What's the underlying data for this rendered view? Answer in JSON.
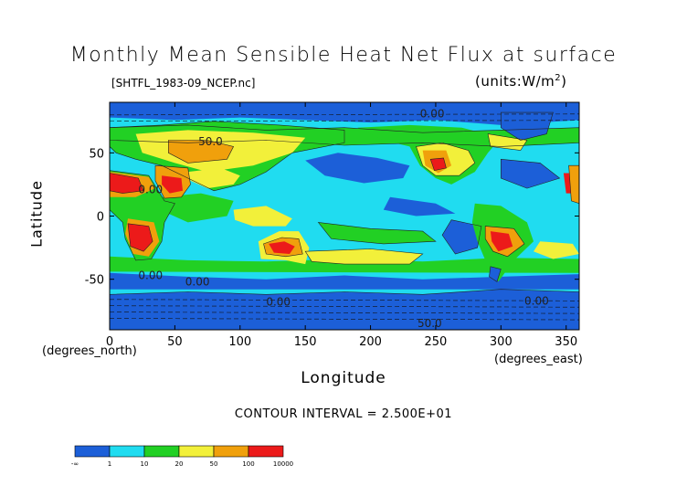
{
  "chart_data": {
    "type": "heatmap",
    "title": "Monthly Mean Sensible Heat Net Flux at surface",
    "dataset": "[SHTFL_1983-09_NCEP.nc]",
    "units": "(units:W/m^2)",
    "xlabel": "Longitude",
    "ylabel": "Latitude",
    "x_unit": "(degrees_east)",
    "y_unit": "(degrees_north)",
    "xlim": [
      0,
      360
    ],
    "ylim": [
      -90,
      90
    ],
    "x_ticks": [
      0,
      50,
      100,
      150,
      200,
      250,
      300,
      350
    ],
    "y_ticks": [
      50,
      0,
      -50
    ],
    "contour_interval": "CONTOUR INTERVAL = 2.500E+01",
    "contour_labels": [
      {
        "text": "0.00",
        "lon": 238,
        "lat": 78
      },
      {
        "text": "50.0",
        "lon": 68,
        "lat": 56
      },
      {
        "text": "0.00",
        "lon": 22,
        "lat": 18
      },
      {
        "text": "0.00",
        "lon": 22,
        "lat": -50
      },
      {
        "text": "0.00",
        "lon": 58,
        "lat": -55
      },
      {
        "text": "0.00",
        "lon": 120,
        "lat": -71
      },
      {
        "text": "0.00",
        "lon": 318,
        "lat": -70
      },
      {
        "text": "50.0",
        "lon": 236,
        "lat": -88
      }
    ],
    "colorbar": {
      "colors": [
        "#1c5fd8",
        "#20dcf0",
        "#22d024",
        "#f2f03a",
        "#f0a00c",
        "#ec1a1a"
      ],
      "tick_labels": [
        "-∞",
        "1",
        "10",
        "20",
        "50",
        "100",
        "10000"
      ]
    },
    "field_colors": {
      "ocean_base": "#20dcf0",
      "low": "#1c5fd8",
      "mid": "#22d024",
      "warm": "#f2f03a",
      "hot": "#f0a00c",
      "max": "#ec1a1a"
    }
  }
}
